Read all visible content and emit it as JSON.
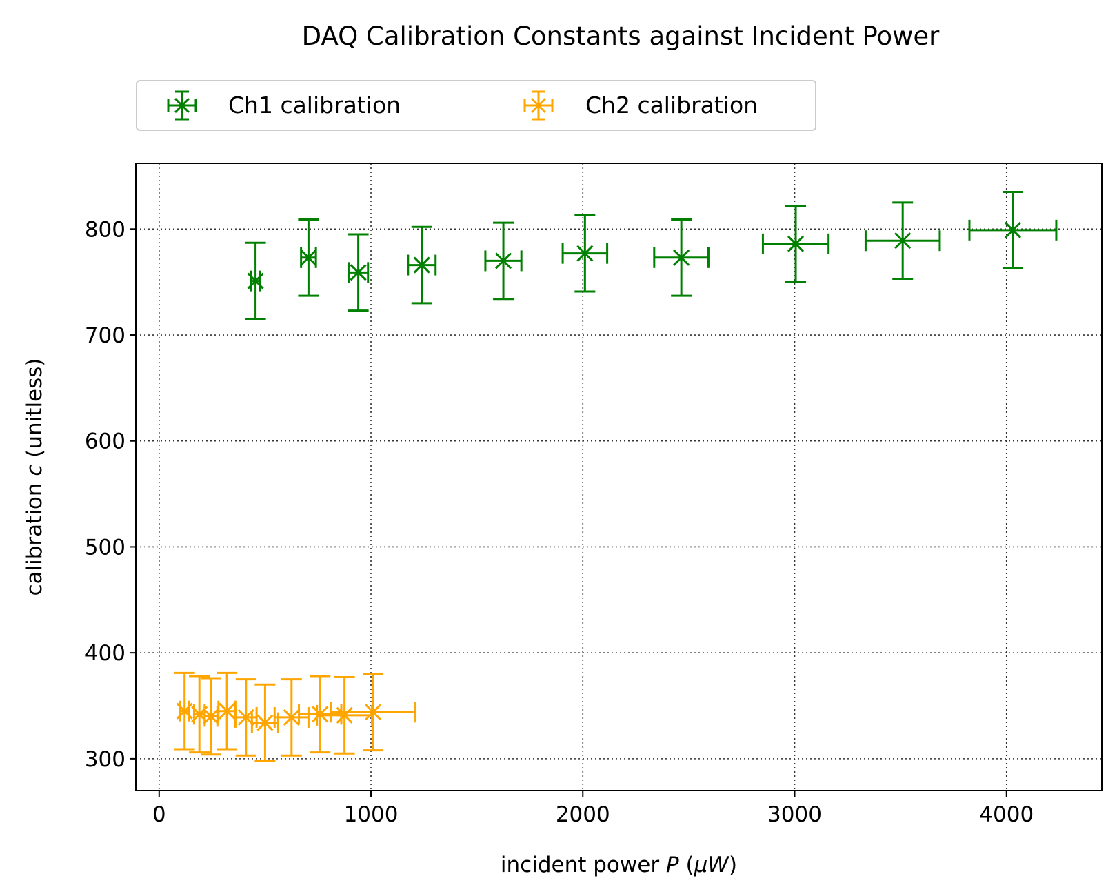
{
  "chart_data": {
    "type": "scatter",
    "title": "DAQ Calibration Constants against Incident Power",
    "xlabel": "incident power P (μW)",
    "xlabel_parts": [
      "incident power ",
      "P",
      " (",
      "μW",
      ")"
    ],
    "ylabel": "calibration c (unitless)",
    "ylabel_parts": [
      "calibration ",
      "c",
      " (unitless)"
    ],
    "xlim": [
      -110,
      4450
    ],
    "ylim": [
      270,
      862
    ],
    "x_ticks": [
      0,
      1000,
      2000,
      3000,
      4000
    ],
    "x_tick_labels": [
      "0",
      "1000",
      "2000",
      "3000",
      "4000"
    ],
    "y_ticks": [
      300,
      400,
      500,
      600,
      700,
      800
    ],
    "y_tick_labels": [
      "300",
      "400",
      "500",
      "600",
      "700",
      "800"
    ],
    "grid": true,
    "legend_position": "top-left, above plot",
    "marker": "x with error bars",
    "series": [
      {
        "name": "Ch1 calibration",
        "color": "#008000",
        "points": [
          {
            "x": 455,
            "y": 751,
            "xerr": 22,
            "yerr": 36
          },
          {
            "x": 705,
            "y": 773,
            "xerr": 35,
            "yerr": 36
          },
          {
            "x": 940,
            "y": 759,
            "xerr": 46,
            "yerr": 36
          },
          {
            "x": 1240,
            "y": 766,
            "xerr": 65,
            "yerr": 36
          },
          {
            "x": 1625,
            "y": 770,
            "xerr": 85,
            "yerr": 36
          },
          {
            "x": 2010,
            "y": 777,
            "xerr": 105,
            "yerr": 36
          },
          {
            "x": 2465,
            "y": 773,
            "xerr": 128,
            "yerr": 36
          },
          {
            "x": 3005,
            "y": 786,
            "xerr": 155,
            "yerr": 36
          },
          {
            "x": 3510,
            "y": 789,
            "xerr": 175,
            "yerr": 36
          },
          {
            "x": 4030,
            "y": 799,
            "xerr": 205,
            "yerr": 36
          }
        ]
      },
      {
        "name": "Ch2 calibration",
        "color": "#ffa500",
        "points": [
          {
            "x": 120,
            "y": 345,
            "xerr": 20,
            "yerr": 36
          },
          {
            "x": 190,
            "y": 342,
            "xerr": 25,
            "yerr": 36
          },
          {
            "x": 245,
            "y": 340,
            "xerr": 30,
            "yerr": 36
          },
          {
            "x": 320,
            "y": 345,
            "xerr": 40,
            "yerr": 36
          },
          {
            "x": 410,
            "y": 339,
            "xerr": 50,
            "yerr": 36
          },
          {
            "x": 500,
            "y": 334,
            "xerr": 62,
            "yerr": 36
          },
          {
            "x": 625,
            "y": 339,
            "xerr": 80,
            "yerr": 36
          },
          {
            "x": 760,
            "y": 342,
            "xerr": 100,
            "yerr": 36
          },
          {
            "x": 875,
            "y": 341,
            "xerr": 130,
            "yerr": 36
          },
          {
            "x": 1010,
            "y": 344,
            "xerr": 200,
            "yerr": 36
          }
        ]
      }
    ]
  }
}
